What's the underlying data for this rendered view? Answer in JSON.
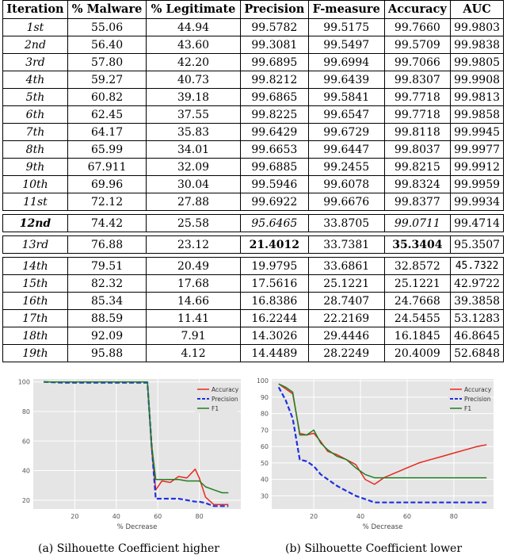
{
  "table": {
    "headers": [
      "Iteration",
      "% Malware",
      "% Legitimate",
      "Precision",
      "F-measure",
      "Accuracy",
      "AUC"
    ],
    "group1": [
      [
        "1st",
        "55.06",
        "44.94",
        "99.5782",
        "99.5175",
        "99.7660",
        "99.9803"
      ],
      [
        "2nd",
        "56.40",
        "43.60",
        "99.3081",
        "99.5497",
        "99.5709",
        "99.9838"
      ],
      [
        "3rd",
        "57.80",
        "42.20",
        "99.6895",
        "99.6994",
        "99.7066",
        "99.9805"
      ],
      [
        "4th",
        "59.27",
        "40.73",
        "99.8212",
        "99.6439",
        "99.8307",
        "99.9908"
      ],
      [
        "5th",
        "60.82",
        "39.18",
        "99.6865",
        "99.5841",
        "99.7718",
        "99.9813"
      ],
      [
        "6th",
        "62.45",
        "37.55",
        "99.8225",
        "99.6547",
        "99.7718",
        "99.9858"
      ],
      [
        "7th",
        "64.17",
        "35.83",
        "99.6429",
        "99.6729",
        "99.8118",
        "99.9945"
      ],
      [
        "8th",
        "65.99",
        "34.01",
        "99.6653",
        "99.6447",
        "99.8037",
        "99.9977"
      ],
      [
        "9th",
        "67.911",
        "32.09",
        "99.6885",
        "99.2455",
        "99.8215",
        "99.9912"
      ],
      [
        "10th",
        "69.96",
        "30.04",
        "99.5946",
        "99.6078",
        "99.8324",
        "99.9959"
      ],
      [
        "11st",
        "72.12",
        "27.88",
        "99.6922",
        "99.6676",
        "99.8377",
        "99.9934"
      ]
    ],
    "row12": [
      "12nd",
      "74.42",
      "25.58",
      "95.6465",
      "33.8705",
      "99.0711",
      "99.4714"
    ],
    "row13": [
      "13rd",
      "76.88",
      "23.12",
      "21.4012",
      "33.7381",
      "35.3404",
      "95.3507"
    ],
    "group3": [
      [
        "14th",
        "79.51",
        "20.49",
        "19.9795",
        "33.6861",
        "32.8572",
        "45.7322"
      ],
      [
        "15th",
        "82.32",
        "17.68",
        "17.5616",
        "25.1221",
        "25.1221",
        "42.9722"
      ],
      [
        "16th",
        "85.34",
        "14.66",
        "16.8386",
        "28.7407",
        "24.7668",
        "39.3858"
      ],
      [
        "17th",
        "88.59",
        "11.41",
        "16.2244",
        "22.2169",
        "24.5455",
        "53.1283"
      ],
      [
        "18th",
        "92.09",
        "7.91",
        "14.3026",
        "29.4446",
        "16.1845",
        "46.8645"
      ],
      [
        "19th",
        "95.88",
        "4.12",
        "14.4489",
        "28.2249",
        "20.4009",
        "52.6848"
      ]
    ]
  },
  "chart_data": [
    {
      "type": "line",
      "xlabel": "% Decrease",
      "xlim": [
        0,
        100
      ],
      "ylim": [
        14,
        102
      ],
      "xticks": [
        "20",
        "40",
        "60",
        "80"
      ],
      "yticks": [
        "20",
        "40",
        "60",
        "80",
        "100"
      ],
      "legend_position": "top-right",
      "series": [
        {
          "name": "Accuracy",
          "color": "#e8281e",
          "dash": false,
          "x": [
            5,
            15,
            25,
            35,
            45,
            55,
            57,
            59,
            62,
            66,
            70,
            74,
            78,
            80,
            83,
            87,
            91,
            94
          ],
          "y": [
            100,
            100,
            100,
            100,
            100,
            100,
            55,
            27,
            33,
            32,
            36,
            35,
            41,
            35,
            22,
            17,
            17,
            17
          ]
        },
        {
          "name": "Precision",
          "color": "#1f2fe0",
          "dash": true,
          "x": [
            5,
            15,
            25,
            35,
            45,
            55,
            57,
            59,
            62,
            66,
            70,
            74,
            78,
            80,
            83,
            87,
            91,
            94
          ],
          "y": [
            100,
            99.5,
            99.5,
            99.5,
            99.5,
            99.5,
            58,
            21,
            21,
            21,
            21,
            20,
            19,
            19,
            18,
            16,
            16,
            16
          ]
        },
        {
          "name": "F1",
          "color": "#217f21",
          "dash": false,
          "x": [
            5,
            15,
            25,
            35,
            45,
            55,
            57,
            59,
            62,
            66,
            70,
            74,
            78,
            80,
            83,
            87,
            91,
            94
          ],
          "y": [
            100,
            100,
            100,
            100,
            100,
            100,
            58,
            34,
            34,
            34,
            34,
            33,
            33,
            33,
            29,
            27,
            25,
            25
          ]
        }
      ]
    },
    {
      "type": "line",
      "xlabel": "% Decrease",
      "xlim": [
        2,
        97
      ],
      "ylim": [
        22,
        101
      ],
      "xticks": [
        "20",
        "40",
        "60",
        "80"
      ],
      "yticks": [
        "30",
        "40",
        "50",
        "60",
        "70",
        "80",
        "90",
        "100"
      ],
      "legend_position": "top-right",
      "series": [
        {
          "name": "Accuracy",
          "color": "#e8281e",
          "dash": false,
          "x": [
            5,
            8,
            11,
            14,
            17,
            20,
            23,
            26,
            30,
            34,
            38,
            42,
            46,
            50,
            55,
            60,
            65,
            70,
            75,
            80,
            85,
            90,
            94
          ],
          "y": [
            98,
            95,
            92,
            68,
            67,
            68,
            63,
            57,
            55,
            52,
            49,
            40,
            37,
            41,
            44,
            47,
            50,
            52,
            54,
            56,
            58,
            60,
            61
          ]
        },
        {
          "name": "Precision",
          "color": "#1f2fe0",
          "dash": true,
          "x": [
            5,
            8,
            11,
            14,
            17,
            20,
            23,
            26,
            30,
            34,
            38,
            42,
            46,
            50,
            55,
            60,
            65,
            70,
            75,
            80,
            85,
            90,
            94
          ],
          "y": [
            96,
            88,
            77,
            52,
            51,
            48,
            43,
            40,
            36,
            33,
            30,
            28,
            26,
            26,
            26,
            26,
            26,
            26,
            26,
            26,
            26,
            26,
            26
          ]
        },
        {
          "name": "F1",
          "color": "#217f21",
          "dash": false,
          "x": [
            5,
            8,
            11,
            14,
            17,
            20,
            23,
            26,
            30,
            34,
            38,
            42,
            46,
            50,
            55,
            60,
            65,
            70,
            75,
            80,
            85,
            90,
            94
          ],
          "y": [
            98,
            96,
            93,
            67,
            67,
            70,
            62,
            58,
            54,
            52,
            47,
            43,
            41,
            41,
            41,
            41,
            41,
            41,
            41,
            41,
            41,
            41,
            41
          ]
        }
      ]
    }
  ],
  "captions": [
    "(a) Silhouette Coefficient higher",
    "(b) Silhouette Coefficient lower"
  ]
}
